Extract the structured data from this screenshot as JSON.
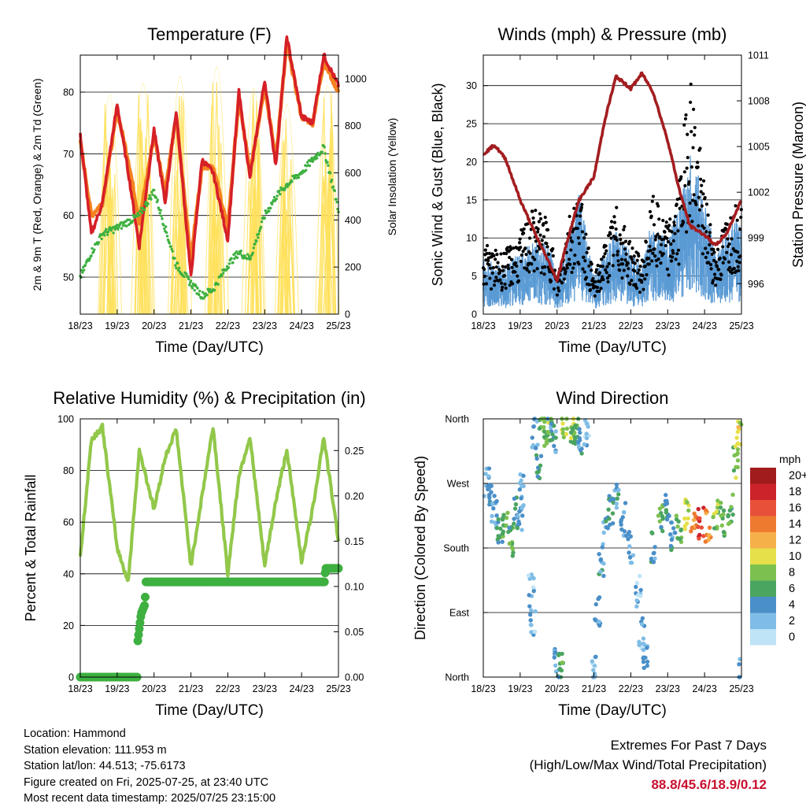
{
  "x_ticks": [
    "18/23",
    "19/23",
    "20/23",
    "21/23",
    "22/23",
    "23/23",
    "24/23",
    "25/23"
  ],
  "x_axis_label": "Time (Day/UTC)",
  "colors": {
    "temp_2m": "#d62027",
    "temp_9m": "#f58220",
    "dewpoint": "#3eb040",
    "solar": "#ffe15a",
    "wind": "#5b9bd5",
    "gust": "#000000",
    "pressure": "#a31d20",
    "rh": "#92c84a",
    "precip": "#3eb040"
  },
  "chart_data": [
    {
      "type": "line",
      "title": "Temperature (F)",
      "ylabel": "2m & 9m T (Red, Orange) & 2m Td (Green)",
      "ylabel_right": "Solar Insolation (Yellow)",
      "ylim": [
        44,
        86
      ],
      "yticks": [
        50,
        60,
        70,
        80
      ],
      "ylim_right": [
        0,
        1100
      ],
      "yticks_right": [
        0,
        200,
        400,
        600,
        800,
        1000
      ],
      "xlim_days": [
        0,
        7
      ],
      "x": [
        0,
        0.3,
        0.6,
        1.0,
        1.3,
        1.6,
        2.0,
        2.3,
        2.6,
        3.0,
        3.3,
        3.6,
        4.0,
        4.3,
        4.6,
        5.0,
        5.3,
        5.6,
        6.0,
        6.3,
        6.6,
        7.0
      ],
      "series": [
        {
          "values": [
            73,
            57,
            62,
            78,
            67,
            55,
            74,
            62,
            77,
            50,
            69,
            67,
            56,
            80,
            66,
            82,
            68,
            89,
            76,
            75,
            86,
            81
          ]
        },
        {
          "values": [
            72,
            60,
            62,
            77,
            69,
            59,
            73,
            64,
            76,
            53,
            68,
            68,
            58,
            79,
            67,
            81,
            69,
            88,
            76,
            75,
            85,
            80
          ]
        },
        {
          "values": [
            50,
            54,
            57,
            58,
            59,
            60,
            64,
            58,
            52,
            49,
            47,
            48,
            52,
            54,
            53,
            60,
            63,
            65,
            67,
            69,
            71,
            61
          ]
        }
      ],
      "solar_peaks": [
        0.8,
        1.7,
        2.7,
        3.7,
        4.7,
        5.6,
        6.7
      ],
      "solar_peak_values": [
        930,
        980,
        1010,
        1050,
        960,
        890,
        970
      ]
    },
    {
      "type": "scatter",
      "title": "Winds (mph) & Pressure (mb)",
      "ylabel": "Sonic Wind & Gust (Blue, Black)",
      "ylabel_right": "Station Pressure (Maroon)",
      "ylim": [
        0,
        34
      ],
      "yticks": [
        0,
        5,
        10,
        15,
        20,
        25,
        30
      ],
      "ylim_right": [
        994,
        1011
      ],
      "yticks_right": [
        996,
        999,
        1002,
        1005,
        1008,
        1011
      ],
      "x": [
        0,
        0.3,
        0.6,
        1.0,
        1.4,
        1.8,
        2.0,
        2.3,
        2.6,
        3.0,
        3.3,
        3.6,
        4.0,
        4.3,
        4.6,
        5.0,
        5.3,
        5.6,
        6.0,
        6.3,
        6.6,
        7.0
      ],
      "series": [
        {
          "name": "wind",
          "values": [
            5,
            4,
            4,
            5,
            6,
            6,
            3,
            6,
            10,
            3,
            5,
            7,
            5,
            4,
            8,
            6,
            9,
            13,
            10,
            5,
            7,
            8
          ]
        },
        {
          "name": "gust",
          "values": [
            8,
            7,
            7,
            9,
            12,
            10,
            4,
            11,
            14,
            4,
            8,
            12,
            8,
            6,
            13,
            10,
            14,
            28,
            14,
            7,
            11,
            13
          ]
        },
        {
          "name": "pressure",
          "values": [
            1004.5,
            1005.1,
            1004.2,
            1001.5,
            999.3,
            997.3,
            996.2,
            999.0,
            1001.5,
            1003.0,
            1006.8,
            1009.6,
            1008.8,
            1009.8,
            1008.6,
            1005.4,
            1002.3,
            999.8,
            999.2,
            998.5,
            999.3,
            1001.5
          ]
        }
      ]
    },
    {
      "type": "line",
      "title": "Relative Humidity (%) & Precipitation (in)",
      "ylabel": "Percent & Total Rainfall",
      "ylim": [
        0,
        100
      ],
      "yticks": [
        0,
        20,
        40,
        60,
        80,
        100
      ],
      "ylim_right": [
        0,
        0.285
      ],
      "yticks_right": [
        "0.00",
        "0.05",
        "0.10",
        "0.15",
        "0.20",
        "0.25"
      ],
      "x": [
        0,
        0.3,
        0.6,
        1.0,
        1.3,
        1.6,
        2.0,
        2.3,
        2.6,
        3.0,
        3.3,
        3.6,
        4.0,
        4.3,
        4.6,
        5.0,
        5.3,
        5.6,
        6.0,
        6.3,
        6.6,
        7.0
      ],
      "series": [
        {
          "name": "rh",
          "values": [
            46,
            92,
            97,
            50,
            37,
            88,
            65,
            85,
            96,
            43,
            70,
            97,
            40,
            78,
            93,
            43,
            68,
            88,
            45,
            65,
            93,
            53
          ]
        },
        {
          "name": "precip",
          "x": [
            0,
            1.55,
            1.56,
            1.65,
            1.75,
            1.78,
            6.62,
            6.65,
            7.0
          ],
          "values": [
            0,
            0,
            0.04,
            0.07,
            0.08,
            0.105,
            0.105,
            0.12,
            0.12
          ]
        }
      ]
    },
    {
      "type": "scatter",
      "title": "Wind Direction",
      "ylabel": "Direction (Colored By Speed)",
      "ytick_labels": [
        "North",
        "East",
        "South",
        "West",
        "North"
      ],
      "ylim": [
        0,
        360
      ],
      "legend_title": "mph",
      "legend_labels": [
        "0",
        "2",
        "4",
        "6",
        "8",
        "10",
        "12",
        "14",
        "16",
        "18",
        "20+"
      ],
      "legend_colors": [
        "#bfe3f7",
        "#7fbde6",
        "#4a8fc8",
        "#4aa560",
        "#7cc150",
        "#e6e04a",
        "#f6b04a",
        "#ee7a30",
        "#e8503a",
        "#cc2229",
        "#a11c1c"
      ],
      "points": [
        [
          0.1,
          270
        ],
        [
          0.2,
          255
        ],
        [
          0.3,
          230
        ],
        [
          0.45,
          200
        ],
        [
          0.6,
          210
        ],
        [
          0.75,
          190
        ],
        [
          0.9,
          230
        ],
        [
          1.0,
          220
        ],
        [
          1.05,
          260
        ],
        [
          1.3,
          120
        ],
        [
          1.35,
          80
        ],
        [
          1.4,
          340
        ],
        [
          1.5,
          300
        ],
        [
          1.6,
          355
        ],
        [
          1.7,
          345
        ],
        [
          1.8,
          350
        ],
        [
          1.9,
          335
        ],
        [
          2.0,
          20
        ],
        [
          2.1,
          10
        ],
        [
          2.2,
          355
        ],
        [
          2.4,
          350
        ],
        [
          2.5,
          345
        ],
        [
          2.6,
          330
        ],
        [
          2.8,
          345
        ],
        [
          3.0,
          10
        ],
        [
          3.1,
          90
        ],
        [
          3.2,
          160
        ],
        [
          3.3,
          200
        ],
        [
          3.45,
          230
        ],
        [
          3.6,
          250
        ],
        [
          3.8,
          220
        ],
        [
          4.0,
          180
        ],
        [
          4.2,
          120
        ],
        [
          4.3,
          60
        ],
        [
          4.4,
          30
        ],
        [
          4.6,
          180
        ],
        [
          4.8,
          220
        ],
        [
          5.0,
          240
        ],
        [
          5.15,
          200
        ],
        [
          5.3,
          210
        ],
        [
          5.5,
          225
        ],
        [
          5.7,
          210
        ],
        [
          5.9,
          215
        ],
        [
          6.1,
          210
        ],
        [
          6.3,
          225
        ],
        [
          6.5,
          220
        ],
        [
          6.7,
          235
        ],
        [
          6.85,
          300
        ],
        [
          6.95,
          345
        ],
        [
          7.0,
          10
        ]
      ],
      "point_speeds": [
        3,
        4,
        3,
        5,
        7,
        6,
        5,
        4,
        3,
        2,
        2,
        3,
        5,
        7,
        8,
        6,
        4,
        3,
        6,
        9,
        8,
        7,
        4,
        2,
        2,
        3,
        4,
        4,
        5,
        4,
        3,
        3,
        2,
        2,
        3,
        4,
        6,
        5,
        4,
        6,
        9,
        14,
        17,
        13,
        8,
        7,
        6,
        8,
        10,
        4
      ]
    }
  ],
  "info": {
    "location": "Location: Hammond",
    "elevation": "Station elevation: 111.953 m",
    "latlon": "Station lat/lon: 44.513; -75.6173",
    "created": "Figure created on Fri, 2025-07-25, at 23:40 UTC",
    "recent": "Most recent data timestamp: 2025/07/25 23:15:00"
  },
  "extremes": {
    "title": "Extremes For Past 7 Days",
    "subtitle": "(High/Low/Max Wind/Total Precipitation)",
    "values": "88.8/45.6/18.9/0.12"
  }
}
